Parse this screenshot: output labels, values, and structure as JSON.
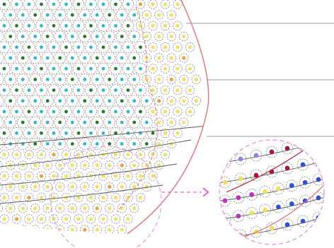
{
  "colors": {
    "background": "#ffffff",
    "boundary": "#e0707a",
    "leader_line": "#9a9a9a",
    "dashed_region": "#e898e0",
    "ring": "#707070",
    "ring_inner_region": "#888888",
    "dot_teal": "#2ab8c8",
    "dot_green": "#1f7a2a",
    "dot_yellow": "#f0e060",
    "dot_orange": "#e8a040",
    "dot_blue": "#3050d8",
    "dot_dark_red": "#a01838",
    "dot_magenta": "#c030c0",
    "dot_purple": "#8888e0",
    "curve_red": "#b82030",
    "curve_gray": "#555555",
    "arrow": "#e060d0"
  },
  "icons": {
    "zoom_arrow": "chevron-right-icon"
  }
}
